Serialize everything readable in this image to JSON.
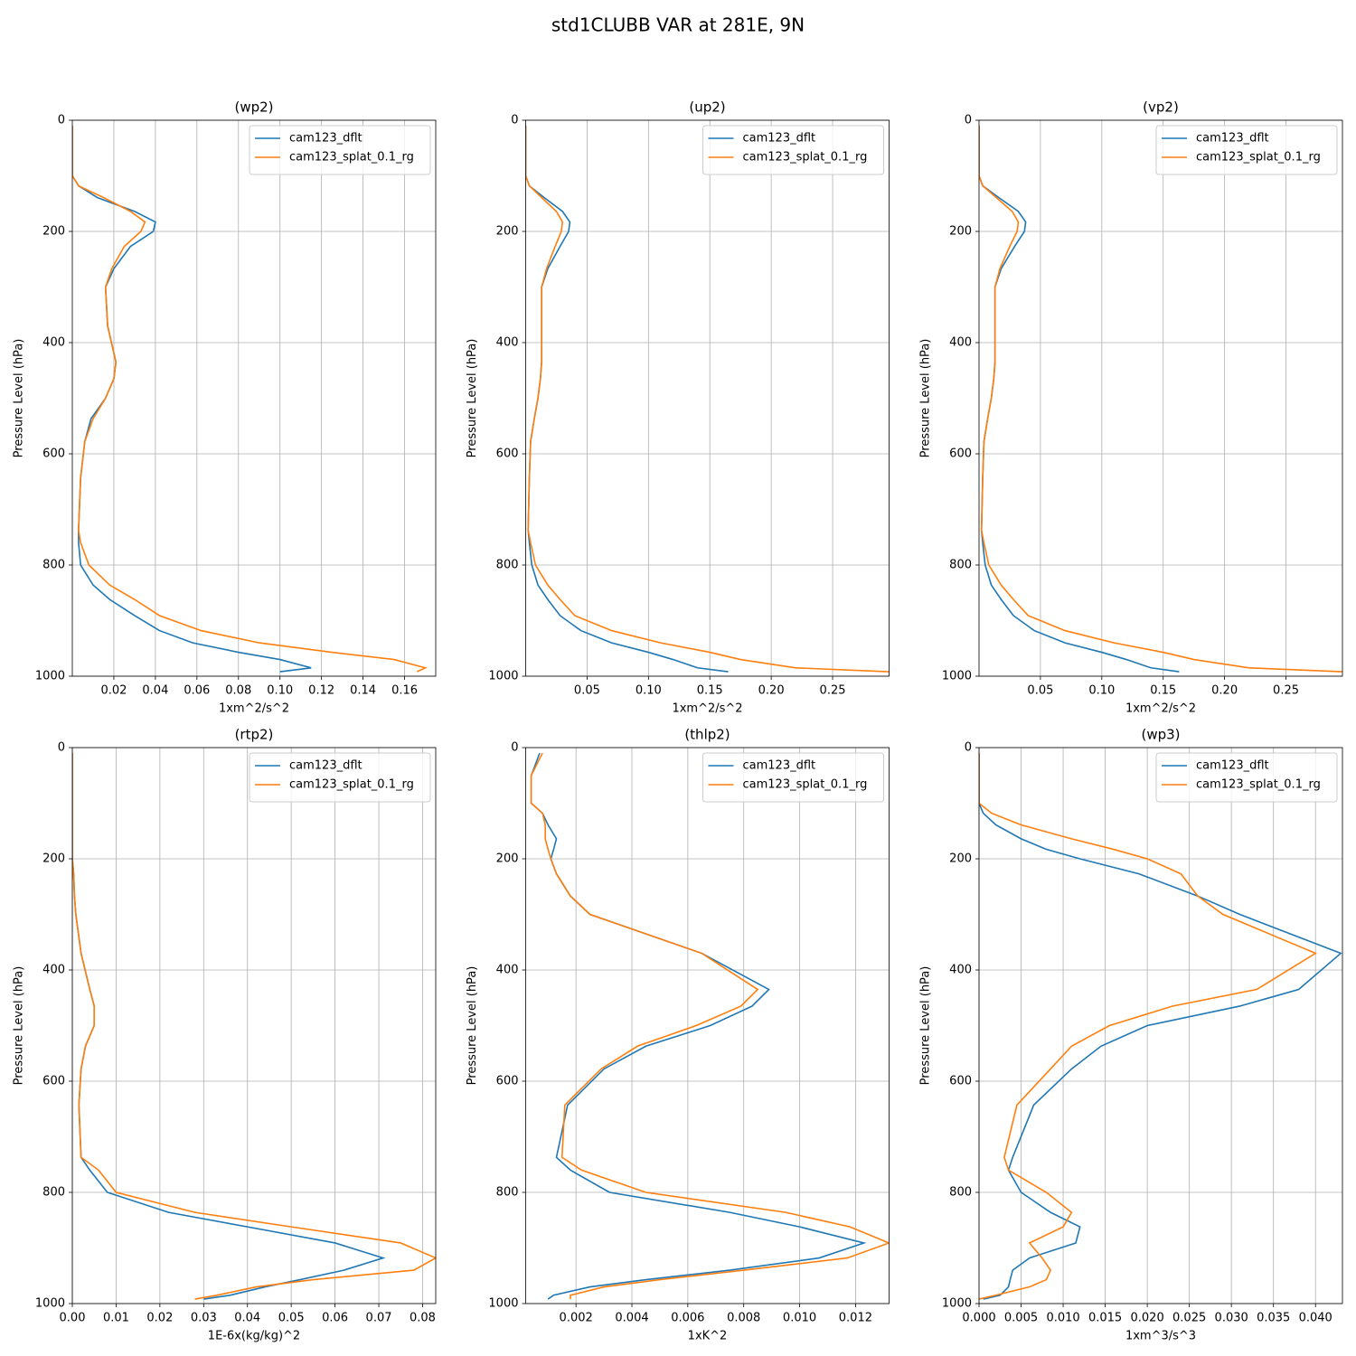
{
  "title": "std1CLUBB VAR at 281E, 9N",
  "chart_data": [
    {
      "type": "line",
      "title": "(wp2)",
      "xlabel": "1xm^2/s^2",
      "ylabel": "Pressure Level (hPa)",
      "xlim": [
        0,
        0.175
      ],
      "xticks": [
        0.02,
        0.04,
        0.06,
        0.08,
        {
          "value": 0.1,
          "label": "0.10"
        },
        0.12,
        0.14,
        0.16
      ],
      "ylim": [
        1000,
        0
      ],
      "yticks": [
        0,
        200,
        400,
        600,
        800,
        1000
      ],
      "grid": true,
      "legend": "upper right",
      "y": [
        10,
        50,
        100,
        118,
        139,
        164,
        183,
        200,
        227,
        267,
        300,
        370,
        435,
        465,
        500,
        537,
        578,
        643,
        737,
        760,
        800,
        836,
        862,
        891,
        918,
        940,
        957,
        970,
        985,
        992
      ],
      "series": [
        {
          "name": "cam123_dflt",
          "color": "#1f77b4",
          "values": [
            0,
            0,
            0,
            0.003,
            0.012,
            0.03,
            0.04,
            0.039,
            0.028,
            0.02,
            0.016,
            0.017,
            0.021,
            0.02,
            0.016,
            0.009,
            0.006,
            0.004,
            0.003,
            0.003,
            0.004,
            0.01,
            0.018,
            0.03,
            0.042,
            0.058,
            0.08,
            0.1,
            0.115,
            0.1
          ]
        },
        {
          "name": "cam123_splat_0.1_rg",
          "color": "#ff7f0e",
          "values": [
            0,
            0,
            0,
            0.003,
            0.015,
            0.028,
            0.035,
            0.033,
            0.025,
            0.019,
            0.016,
            0.017,
            0.021,
            0.02,
            0.016,
            0.01,
            0.006,
            0.004,
            0.003,
            0.004,
            0.008,
            0.018,
            0.03,
            0.042,
            0.062,
            0.09,
            0.125,
            0.155,
            0.17,
            0.166
          ]
        }
      ]
    },
    {
      "type": "line",
      "title": "(up2)",
      "xlabel": "1xm^2/s^2",
      "ylabel": "Pressure Level (hPa)",
      "xlim": [
        0,
        0.296
      ],
      "xticks": [
        0.05,
        {
          "value": 0.1,
          "label": "0.10"
        },
        0.15,
        {
          "value": 0.2,
          "label": "0.20"
        },
        0.25
      ],
      "ylim": [
        1000,
        0
      ],
      "yticks": [
        0,
        200,
        400,
        600,
        800,
        1000
      ],
      "grid": true,
      "legend": "upper right",
      "y": [
        10,
        50,
        100,
        118,
        139,
        164,
        183,
        200,
        227,
        267,
        300,
        370,
        435,
        465,
        500,
        537,
        578,
        643,
        737,
        760,
        800,
        836,
        862,
        891,
        918,
        940,
        957,
        970,
        985,
        992
      ],
      "series": [
        {
          "name": "cam123_dflt",
          "color": "#1f77b4",
          "values": [
            0,
            0,
            0,
            0.003,
            0.015,
            0.03,
            0.036,
            0.035,
            0.028,
            0.018,
            0.013,
            0.013,
            0.013,
            0.012,
            0.01,
            0.007,
            0.004,
            0.003,
            0.002,
            0.003,
            0.005,
            0.01,
            0.018,
            0.028,
            0.045,
            0.07,
            0.1,
            0.12,
            0.14,
            0.165
          ]
        },
        {
          "name": "cam123_splat_0.1_rg",
          "color": "#ff7f0e",
          "values": [
            0,
            0,
            0,
            0.003,
            0.013,
            0.025,
            0.03,
            0.029,
            0.024,
            0.017,
            0.013,
            0.013,
            0.013,
            0.012,
            0.01,
            0.007,
            0.004,
            0.003,
            0.002,
            0.004,
            0.008,
            0.018,
            0.028,
            0.04,
            0.07,
            0.11,
            0.15,
            0.175,
            0.22,
            0.296
          ]
        }
      ]
    },
    {
      "type": "line",
      "title": "(vp2)",
      "xlabel": "1xm^2/s^2",
      "ylabel": "Pressure Level (hPa)",
      "xlim": [
        0,
        0.296
      ],
      "xticks": [
        0.05,
        {
          "value": 0.1,
          "label": "0.10"
        },
        0.15,
        {
          "value": 0.2,
          "label": "0.20"
        },
        0.25
      ],
      "ylim": [
        1000,
        0
      ],
      "yticks": [
        0,
        200,
        400,
        600,
        800,
        1000
      ],
      "grid": true,
      "legend": "upper right",
      "y": [
        10,
        50,
        100,
        118,
        139,
        164,
        183,
        200,
        227,
        267,
        300,
        370,
        435,
        465,
        500,
        537,
        578,
        643,
        737,
        760,
        800,
        836,
        862,
        891,
        918,
        940,
        957,
        970,
        985,
        992
      ],
      "series": [
        {
          "name": "cam123_dflt",
          "color": "#1f77b4",
          "values": [
            0,
            0,
            0,
            0.003,
            0.016,
            0.032,
            0.038,
            0.037,
            0.029,
            0.018,
            0.013,
            0.013,
            0.013,
            0.012,
            0.01,
            0.007,
            0.004,
            0.003,
            0.002,
            0.003,
            0.005,
            0.01,
            0.018,
            0.028,
            0.045,
            0.07,
            0.1,
            0.12,
            0.14,
            0.163
          ]
        },
        {
          "name": "cam123_splat_0.1_rg",
          "color": "#ff7f0e",
          "values": [
            0,
            0,
            0,
            0.003,
            0.014,
            0.027,
            0.032,
            0.031,
            0.025,
            0.017,
            0.013,
            0.013,
            0.013,
            0.012,
            0.01,
            0.007,
            0.004,
            0.003,
            0.002,
            0.004,
            0.008,
            0.018,
            0.028,
            0.04,
            0.07,
            0.11,
            0.15,
            0.175,
            0.22,
            0.296
          ]
        }
      ]
    },
    {
      "type": "line",
      "title": "(rtp2)",
      "xlabel": "1E-6x(kg/kg)^2",
      "ylabel": "Pressure Level (hPa)",
      "xlim": [
        0,
        0.083
      ],
      "xticks": [
        {
          "value": 0,
          "label": "0.00"
        },
        0.01,
        0.02,
        0.03,
        0.04,
        0.05,
        0.06,
        0.07,
        0.08
      ],
      "ylim": [
        1000,
        0
      ],
      "yticks": [
        0,
        200,
        400,
        600,
        800,
        1000
      ],
      "grid": true,
      "legend": "upper right",
      "y": [
        10,
        50,
        100,
        118,
        139,
        164,
        183,
        200,
        227,
        267,
        300,
        370,
        435,
        465,
        500,
        537,
        578,
        643,
        737,
        760,
        800,
        836,
        862,
        891,
        918,
        940,
        957,
        970,
        985,
        992
      ],
      "series": [
        {
          "name": "cam123_dflt",
          "color": "#1f77b4",
          "values": [
            0,
            0,
            0,
            0,
            0,
            0,
            0,
            0,
            0.0003,
            0.0005,
            0.0008,
            0.002,
            0.004,
            0.005,
            0.005,
            0.003,
            0.002,
            0.0015,
            0.002,
            0.004,
            0.008,
            0.022,
            0.04,
            0.06,
            0.071,
            0.062,
            0.052,
            0.044,
            0.036,
            0.03
          ]
        },
        {
          "name": "cam123_splat_0.1_rg",
          "color": "#ff7f0e",
          "values": [
            0,
            0,
            0,
            0,
            0,
            0,
            0,
            0,
            0.0003,
            0.0005,
            0.0008,
            0.002,
            0.004,
            0.005,
            0.005,
            0.003,
            0.002,
            0.0015,
            0.002,
            0.006,
            0.01,
            0.028,
            0.05,
            0.075,
            0.083,
            0.078,
            0.055,
            0.042,
            0.033,
            0.028
          ]
        }
      ]
    },
    {
      "type": "line",
      "title": "(thlp2)",
      "xlabel": "1xK^2",
      "ylabel": "Pressure Level (hPa)",
      "xlim": [
        0.0002,
        0.0132
      ],
      "xticks": [
        0.002,
        0.004,
        0.006,
        0.008,
        {
          "value": 0.01,
          "label": "0.010"
        },
        0.012
      ],
      "ylim": [
        1000,
        0
      ],
      "yticks": [
        0,
        200,
        400,
        600,
        800,
        1000
      ],
      "grid": true,
      "legend": "upper right",
      "y": [
        10,
        50,
        100,
        118,
        139,
        164,
        183,
        200,
        227,
        267,
        300,
        370,
        435,
        465,
        500,
        537,
        578,
        643,
        737,
        760,
        800,
        836,
        862,
        891,
        918,
        940,
        957,
        970,
        985,
        992
      ],
      "series": [
        {
          "name": "cam123_dflt",
          "color": "#1f77b4",
          "values": [
            0.0007,
            0.0004,
            0.0004,
            0.0008,
            0.001,
            0.0013,
            0.0012,
            0.0011,
            0.0013,
            0.0018,
            0.0025,
            0.0065,
            0.0089,
            0.0083,
            0.0068,
            0.0045,
            0.003,
            0.0017,
            0.0013,
            0.0018,
            0.0032,
            0.0075,
            0.01,
            0.0123,
            0.0107,
            0.0075,
            0.0045,
            0.0025,
            0.0012,
            0.001
          ]
        },
        {
          "name": "cam123_splat_0.1_rg",
          "color": "#ff7f0e",
          "values": [
            0.0008,
            0.0004,
            0.0004,
            0.0008,
            0.0009,
            0.0009,
            0.001,
            0.0011,
            0.0013,
            0.0018,
            0.0025,
            0.0065,
            0.0085,
            0.0079,
            0.0063,
            0.0042,
            0.0029,
            0.0016,
            0.0015,
            0.0022,
            0.0045,
            0.0095,
            0.0118,
            0.0132,
            0.0117,
            0.008,
            0.005,
            0.003,
            0.0018,
            0.0018
          ]
        }
      ]
    },
    {
      "type": "line",
      "title": "(wp3)",
      "xlabel": "1xm^3/s^3",
      "ylabel": "Pressure Level (hPa)",
      "xlim": [
        0,
        0.0432
      ],
      "xticks": [
        {
          "value": 0,
          "label": "0.000"
        },
        0.005,
        {
          "value": 0.01,
          "label": "0.010"
        },
        0.015,
        {
          "value": 0.02,
          "label": "0.020"
        },
        0.025,
        {
          "value": 0.03,
          "label": "0.030"
        },
        0.035,
        {
          "value": 0.04,
          "label": "0.040"
        }
      ],
      "ylim": [
        1000,
        0
      ],
      "yticks": [
        0,
        200,
        400,
        600,
        800,
        1000
      ],
      "grid": true,
      "legend": "upper right",
      "y": [
        10,
        50,
        100,
        118,
        139,
        164,
        183,
        200,
        227,
        267,
        300,
        370,
        435,
        465,
        500,
        537,
        578,
        643,
        737,
        760,
        800,
        836,
        862,
        891,
        918,
        940,
        957,
        970,
        985,
        992
      ],
      "series": [
        {
          "name": "cam123_dflt",
          "color": "#1f77b4",
          "values": [
            0,
            0,
            0,
            0.0005,
            0.002,
            0.005,
            0.008,
            0.012,
            0.019,
            0.026,
            0.031,
            0.043,
            0.038,
            0.031,
            0.02,
            0.0145,
            0.011,
            0.0065,
            0.004,
            0.0035,
            0.005,
            0.0085,
            0.012,
            0.0115,
            0.006,
            0.004,
            0.0037,
            0.0035,
            0.0025,
            0.0005
          ]
        },
        {
          "name": "cam123_splat_0.1_rg",
          "color": "#ff7f0e",
          "values": [
            0,
            0,
            0,
            0.0015,
            0.005,
            0.011,
            0.016,
            0.02,
            0.024,
            0.026,
            0.029,
            0.04,
            0.033,
            0.023,
            0.0155,
            0.011,
            0.0085,
            0.0045,
            0.003,
            0.0035,
            0.008,
            0.011,
            0.01,
            0.006,
            0.0075,
            0.0085,
            0.008,
            0.006,
            0.002,
            0
          ]
        }
      ]
    }
  ]
}
